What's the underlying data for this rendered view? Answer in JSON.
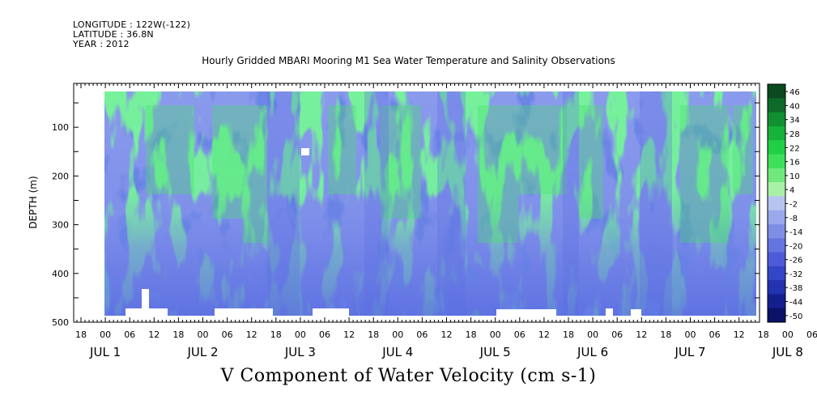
{
  "header": {
    "longitude": "LONGITUDE : 122W(-122)",
    "latitude": "LATITUDE : 36.8N",
    "year": "YEAR : 2012"
  },
  "chart_data": {
    "type": "heatmap",
    "title": "Hourly Gridded MBARI Mooring M1 Sea Water Temperature and Salinity Observations",
    "xlabel": "",
    "ylabel": "DEPTH (m)",
    "footer_label": "V Component of Water Velocity (cm s-1)",
    "ylim": [
      500,
      10
    ],
    "y_ticks": [
      100,
      200,
      300,
      400,
      500
    ],
    "hour_ticks": [
      "18",
      "00",
      "06",
      "12",
      "18",
      "00",
      "06",
      "12",
      "18",
      "00",
      "06",
      "12",
      "18",
      "00",
      "06",
      "12",
      "18",
      "00",
      "06",
      "12",
      "18",
      "00",
      "06",
      "12",
      "18",
      "00",
      "06",
      "12",
      "18",
      "00",
      "06",
      "12"
    ],
    "day_labels": [
      "JUL 1",
      "JUL 2",
      "JUL 3",
      "JUL 4",
      "JUL 5",
      "JUL 6",
      "JUL 7",
      "JUL 8"
    ],
    "colorbar_levels": [
      46,
      40,
      34,
      28,
      22,
      16,
      10,
      4,
      -2,
      -8,
      -14,
      -20,
      -26,
      -32,
      -38,
      -44,
      -50
    ],
    "colorbar_colors": [
      "#0a4a1e",
      "#0d6b2a",
      "#109031",
      "#16b23a",
      "#1fcf46",
      "#3ee05a",
      "#6fe87c",
      "#a8f0a8",
      "#b8c4f0",
      "#9aa8ec",
      "#7e8ee6",
      "#6474e0",
      "#4c5cd8",
      "#3446c8",
      "#2232b0",
      "#141f8e",
      "#0a1268"
    ],
    "grid": false,
    "legend_position": "right"
  }
}
